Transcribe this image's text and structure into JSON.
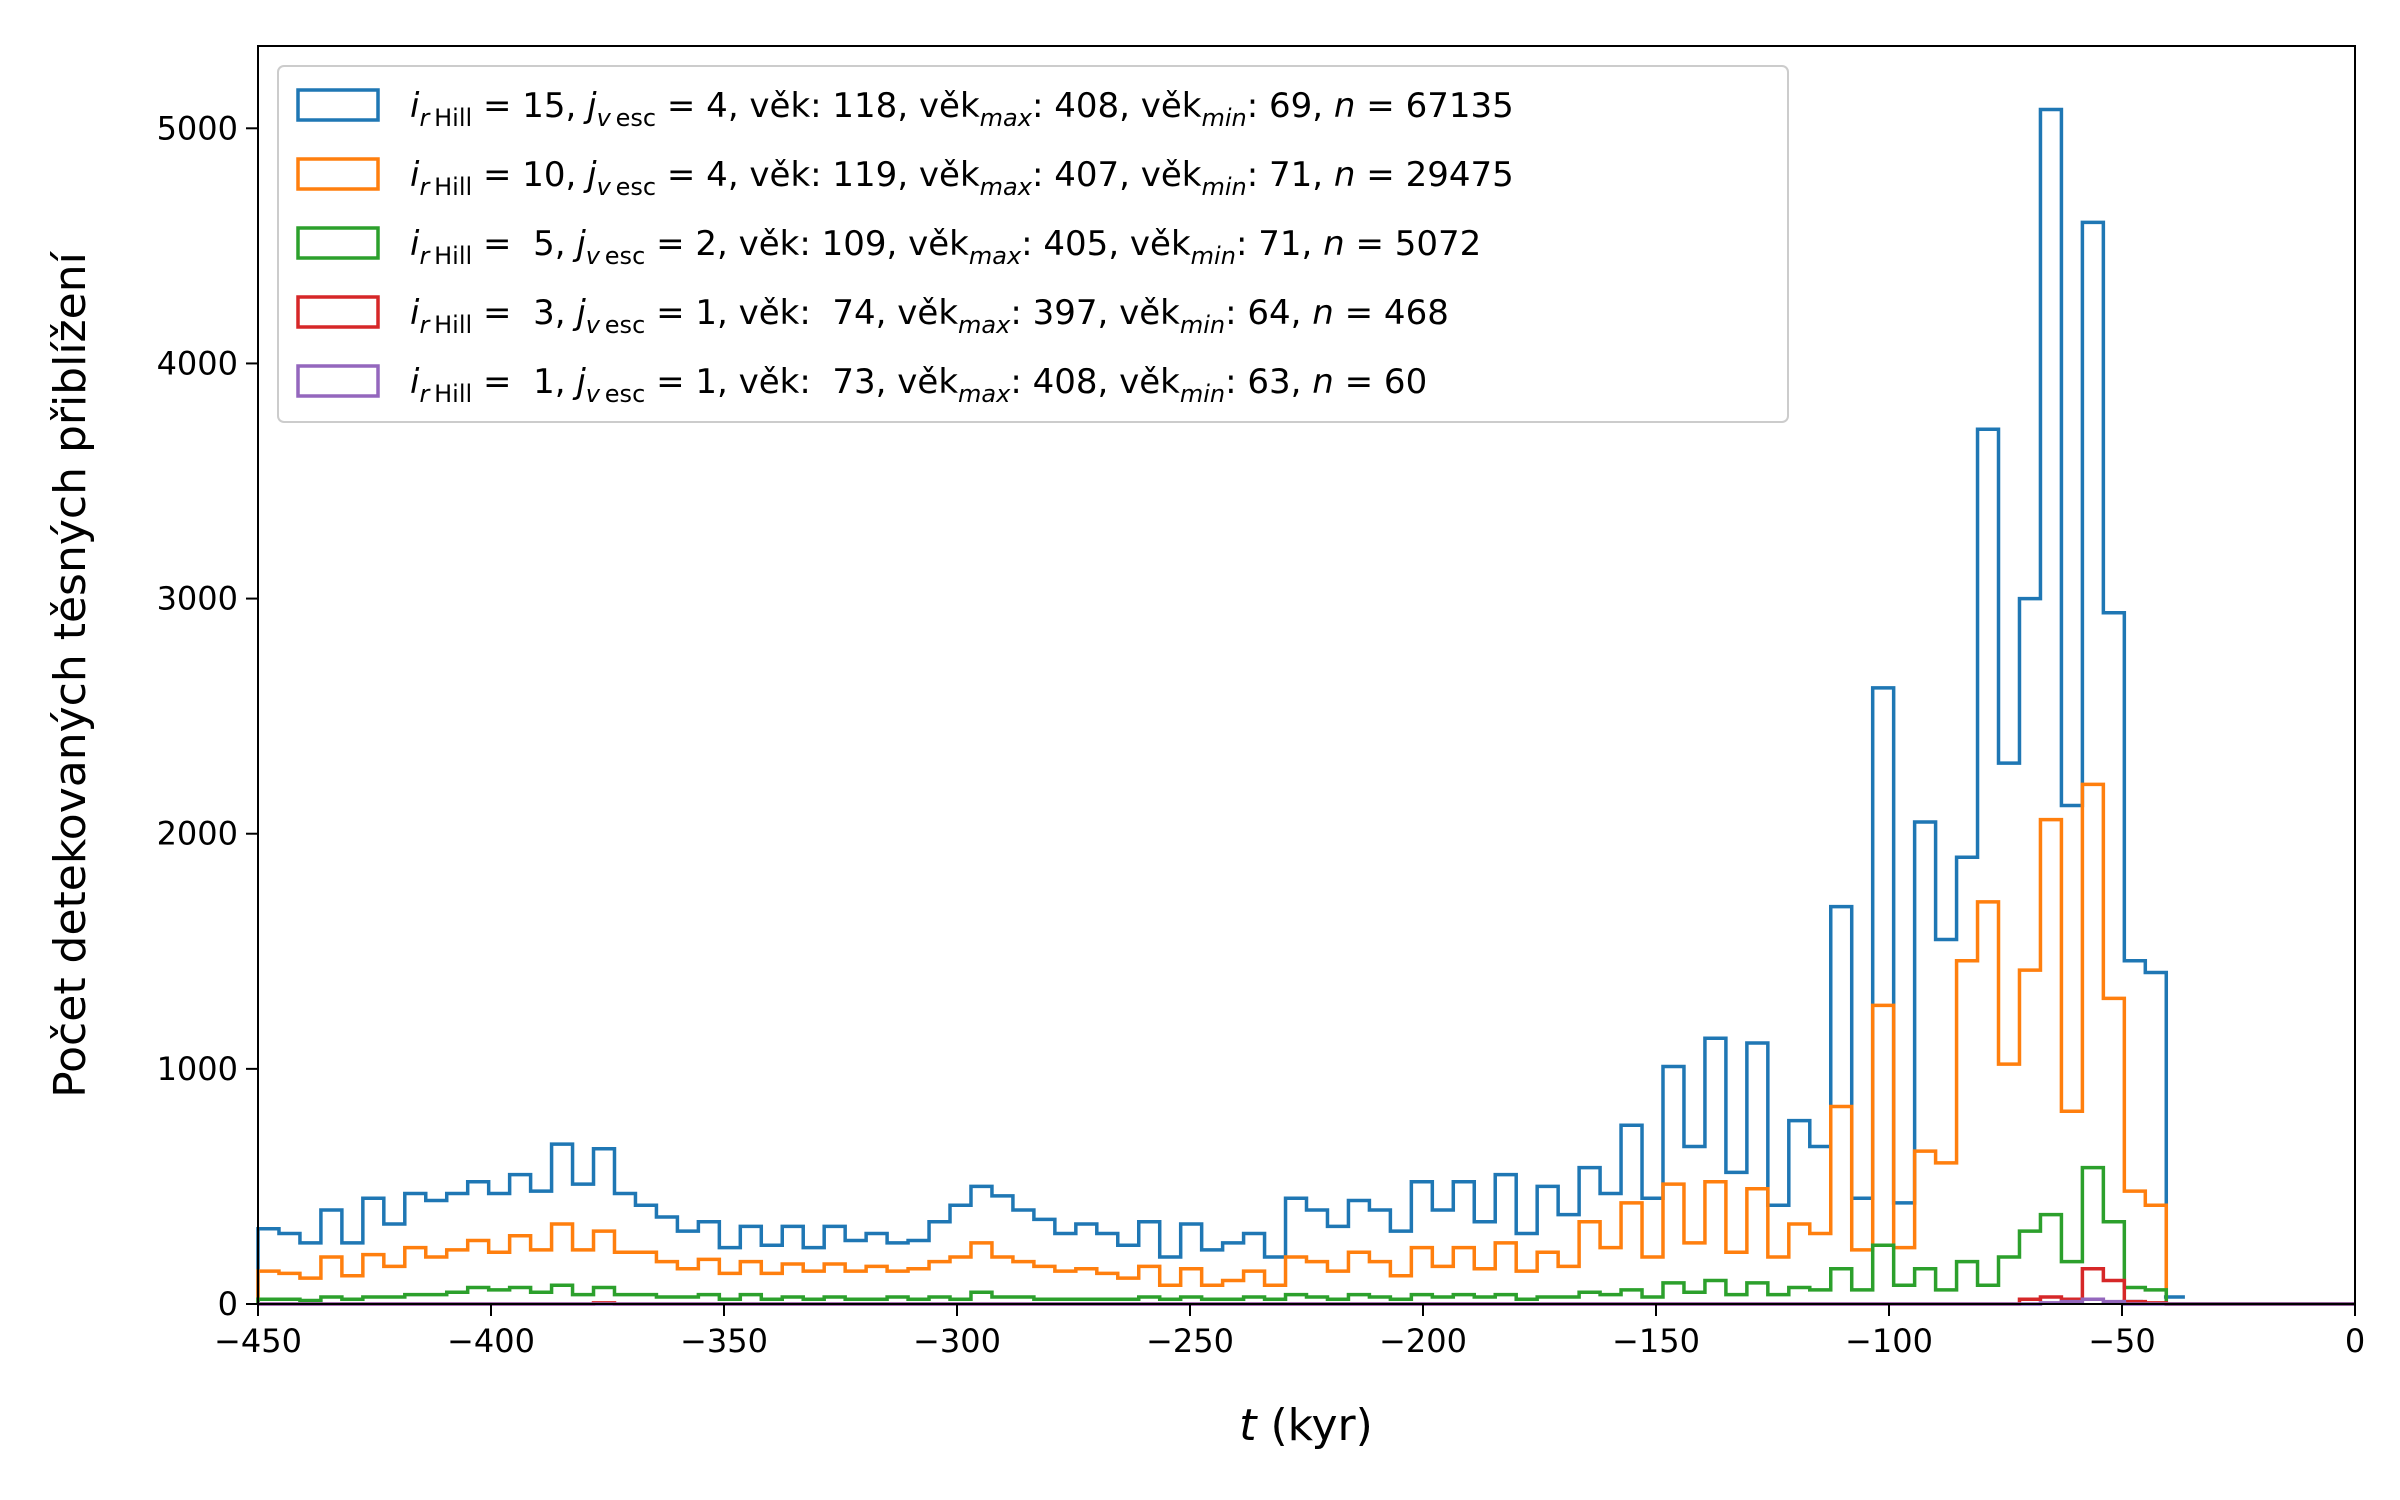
{
  "chart_data": {
    "type": "histogram-step",
    "xlabel": {
      "italic": "t",
      "rest": " (kyr)"
    },
    "ylabel": "Počet detekovaných těsných přiblížení",
    "xlim": [
      -450,
      0
    ],
    "ylim": [
      0,
      5350
    ],
    "xticks": [
      -450,
      -400,
      -350,
      -300,
      -250,
      -200,
      -150,
      -100,
      -50,
      0
    ],
    "xtick_labels": [
      "−450",
      "−400",
      "−350",
      "−300",
      "−250",
      "−200",
      "−150",
      "−100",
      "−50",
      "0"
    ],
    "yticks": [
      0,
      1000,
      2000,
      3000,
      4000,
      5000
    ],
    "ytick_labels": [
      "0",
      "1000",
      "2000",
      "3000",
      "4000",
      "5000"
    ],
    "legend_placement": "upper-left",
    "bin_start": -450,
    "bin_width": 4.5,
    "series": [
      {
        "color": "#1f77b4",
        "legend": {
          "r": "15",
          "v": "4",
          "age": "118",
          "agemax": "408",
          "agemin": "69",
          "n": "67135"
        },
        "values": [
          320,
          300,
          260,
          400,
          260,
          450,
          340,
          470,
          440,
          470,
          520,
          470,
          550,
          480,
          680,
          510,
          660,
          470,
          420,
          370,
          310,
          350,
          240,
          330,
          250,
          330,
          240,
          330,
          270,
          300,
          260,
          270,
          350,
          420,
          500,
          460,
          400,
          360,
          300,
          340,
          300,
          250,
          350,
          200,
          340,
          230,
          260,
          300,
          200,
          450,
          400,
          330,
          440,
          400,
          310,
          520,
          400,
          520,
          350,
          550,
          300,
          500,
          380,
          580,
          470,
          760,
          450,
          1010,
          670,
          1130,
          560,
          1110,
          420,
          780,
          670,
          1690,
          450,
          2620,
          430,
          2050,
          1550,
          1900,
          3720,
          2300,
          3000,
          5080,
          2120,
          4600,
          2940,
          1460,
          1410,
          0,
          0,
          0,
          0,
          0,
          0,
          0,
          0,
          0
        ]
      },
      {
        "color": "#ff7f0e",
        "legend": {
          "r": "10",
          "v": "4",
          "age": "119",
          "agemax": "407",
          "agemin": "71",
          "n": "29475"
        },
        "values": [
          140,
          130,
          110,
          200,
          120,
          210,
          160,
          240,
          200,
          230,
          270,
          220,
          290,
          230,
          340,
          230,
          310,
          220,
          220,
          180,
          150,
          190,
          130,
          180,
          130,
          170,
          140,
          170,
          140,
          160,
          140,
          150,
          180,
          200,
          260,
          200,
          180,
          160,
          140,
          150,
          130,
          110,
          160,
          80,
          150,
          80,
          100,
          140,
          80,
          200,
          180,
          140,
          220,
          180,
          120,
          240,
          160,
          240,
          150,
          260,
          140,
          220,
          160,
          350,
          240,
          430,
          200,
          510,
          260,
          520,
          220,
          490,
          200,
          340,
          300,
          840,
          230,
          1270,
          240,
          650,
          600,
          1460,
          1710,
          1020,
          1420,
          2060,
          820,
          2210,
          1300,
          480,
          420,
          0,
          0,
          0,
          0,
          0,
          0,
          0,
          0,
          0
        ]
      },
      {
        "color": "#2ca02c",
        "legend": {
          "r": " 5",
          "v": "2",
          "age": "109",
          "agemax": "405",
          "agemin": "71",
          "n": "5072"
        },
        "values": [
          20,
          20,
          15,
          30,
          20,
          30,
          30,
          40,
          40,
          50,
          70,
          60,
          70,
          50,
          80,
          40,
          70,
          40,
          40,
          30,
          30,
          40,
          20,
          40,
          20,
          30,
          20,
          30,
          20,
          20,
          30,
          20,
          30,
          20,
          50,
          30,
          30,
          20,
          20,
          20,
          20,
          20,
          30,
          20,
          30,
          20,
          20,
          30,
          20,
          40,
          30,
          20,
          40,
          30,
          20,
          40,
          30,
          40,
          30,
          40,
          20,
          30,
          30,
          50,
          40,
          60,
          30,
          90,
          50,
          100,
          40,
          90,
          40,
          70,
          60,
          150,
          60,
          250,
          80,
          150,
          60,
          180,
          80,
          200,
          310,
          380,
          180,
          580,
          350,
          70,
          60,
          0,
          0,
          0,
          0,
          0,
          0,
          0,
          0,
          0
        ]
      },
      {
        "color": "#d62728",
        "legend": {
          "r": " 3",
          "v": "1",
          "age": " 74",
          "agemax": "397",
          "agemin": "64",
          "n": "468"
        },
        "values": [
          0,
          0,
          0,
          0,
          0,
          0,
          0,
          0,
          0,
          0,
          0,
          0,
          0,
          0,
          0,
          0,
          5,
          0,
          0,
          0,
          0,
          0,
          0,
          0,
          0,
          0,
          0,
          0,
          0,
          0,
          0,
          0,
          0,
          0,
          0,
          0,
          0,
          0,
          0,
          0,
          0,
          0,
          0,
          0,
          0,
          0,
          0,
          0,
          0,
          0,
          0,
          0,
          0,
          0,
          0,
          0,
          0,
          0,
          0,
          0,
          0,
          0,
          0,
          0,
          0,
          0,
          0,
          0,
          0,
          0,
          0,
          0,
          0,
          0,
          0,
          0,
          0,
          0,
          0,
          0,
          0,
          0,
          0,
          0,
          20,
          30,
          20,
          150,
          100,
          10,
          5,
          0,
          0,
          0,
          0,
          0,
          0,
          0,
          0,
          0
        ]
      },
      {
        "color": "#9467bd",
        "legend": {
          "r": " 1",
          "v": "1",
          "age": " 73",
          "agemax": "408",
          "agemin": "63",
          "n": "60"
        },
        "values": [
          0,
          0,
          0,
          0,
          0,
          0,
          0,
          0,
          0,
          0,
          0,
          0,
          0,
          0,
          0,
          0,
          0,
          0,
          0,
          0,
          0,
          0,
          0,
          0,
          0,
          0,
          0,
          0,
          0,
          0,
          0,
          0,
          0,
          0,
          0,
          0,
          0,
          0,
          0,
          0,
          0,
          0,
          0,
          0,
          0,
          0,
          0,
          0,
          0,
          0,
          0,
          0,
          0,
          0,
          0,
          0,
          0,
          0,
          0,
          0,
          0,
          0,
          0,
          0,
          0,
          0,
          0,
          0,
          0,
          0,
          0,
          0,
          0,
          0,
          0,
          0,
          0,
          0,
          0,
          0,
          0,
          0,
          0,
          0,
          0,
          5,
          10,
          20,
          10,
          0,
          0,
          0,
          0,
          0,
          0,
          0,
          0,
          0,
          0,
          0
        ]
      }
    ],
    "extra_blue_bins": [
      {
        "x0": -50,
        "x1": -45.5,
        "v": 10
      },
      {
        "x0": -41,
        "x1": -36.5,
        "v": 30
      }
    ]
  }
}
